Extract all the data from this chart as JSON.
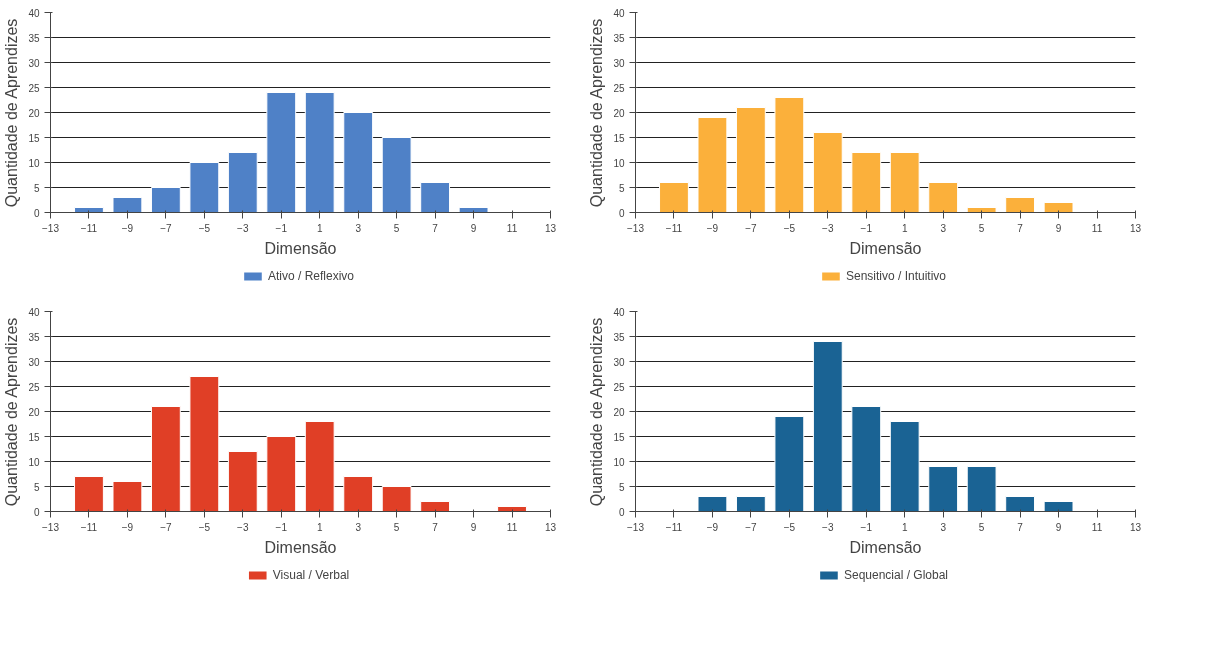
{
  "chart_data": [
    {
      "type": "bar",
      "xlabel": "Dimensão",
      "ylabel": "Quantidade de Aprendizes",
      "x": [
        -11,
        -9,
        -7,
        -5,
        -3,
        -1,
        1,
        3,
        5,
        7,
        9
      ],
      "series": [
        {
          "name": "Ativo / Reflexivo",
          "color": "#4f81c7",
          "values": [
            1,
            3,
            5,
            10,
            12,
            24,
            24,
            20,
            15,
            6,
            1
          ]
        }
      ],
      "xlim": [
        -13,
        13
      ],
      "xticks": [
        -13,
        -11,
        -9,
        -7,
        -5,
        -3,
        -1,
        1,
        3,
        5,
        7,
        9,
        11,
        13
      ],
      "ylim": [
        0,
        40
      ],
      "yticks": [
        0,
        5,
        10,
        15,
        20,
        25,
        30,
        35,
        40
      ],
      "grid": "y",
      "legend": "bottom"
    },
    {
      "type": "bar",
      "xlabel": "Dimensão",
      "ylabel": "Quantidade de Aprendizes",
      "x": [
        -11,
        -9,
        -7,
        -5,
        -3,
        -1,
        1,
        3,
        5,
        7,
        9
      ],
      "series": [
        {
          "name": "Sensitivo / Intuitivo",
          "color": "#fbb03b",
          "values": [
            6,
            19,
            21,
            23,
            16,
            12,
            12,
            6,
            1,
            3,
            2
          ]
        }
      ],
      "xlim": [
        -13,
        13
      ],
      "xticks": [
        -13,
        -11,
        -9,
        -7,
        -5,
        -3,
        -1,
        1,
        3,
        5,
        7,
        9,
        11,
        13
      ],
      "ylim": [
        0,
        40
      ],
      "yticks": [
        0,
        5,
        10,
        15,
        20,
        25,
        30,
        35,
        40
      ],
      "grid": "y",
      "legend": "bottom"
    },
    {
      "type": "bar",
      "xlabel": "Dimensão",
      "ylabel": "Quantidade de Aprendizes",
      "x": [
        -11,
        -9,
        -7,
        -5,
        -3,
        -1,
        1,
        3,
        5,
        7,
        11
      ],
      "series": [
        {
          "name": "Visual / Verbal",
          "color": "#e03f26",
          "values": [
            7,
            6,
            21,
            27,
            12,
            15,
            18,
            7,
            5,
            2,
            1
          ]
        }
      ],
      "xlim": [
        -13,
        13
      ],
      "xticks": [
        -13,
        -11,
        -9,
        -7,
        -5,
        -3,
        -1,
        1,
        3,
        5,
        7,
        9,
        11,
        13
      ],
      "ylim": [
        0,
        40
      ],
      "yticks": [
        0,
        5,
        10,
        15,
        20,
        25,
        30,
        35,
        40
      ],
      "grid": "y",
      "legend": "bottom"
    },
    {
      "type": "bar",
      "xlabel": "Dimensão",
      "ylabel": "Quantidade de Aprendizes",
      "x": [
        -9,
        -7,
        -5,
        -3,
        -1,
        1,
        3,
        5,
        7,
        9
      ],
      "series": [
        {
          "name": "Sequencial / Global",
          "color": "#1a6394",
          "values": [
            3,
            3,
            19,
            34,
            21,
            18,
            9,
            9,
            3,
            2
          ]
        }
      ],
      "xlim": [
        -13,
        13
      ],
      "xticks": [
        -13,
        -11,
        -9,
        -7,
        -5,
        -3,
        -1,
        1,
        3,
        5,
        7,
        9,
        11,
        13
      ],
      "ylim": [
        0,
        40
      ],
      "yticks": [
        0,
        5,
        10,
        15,
        20,
        25,
        30,
        35,
        40
      ],
      "grid": "y",
      "legend": "bottom"
    }
  ]
}
